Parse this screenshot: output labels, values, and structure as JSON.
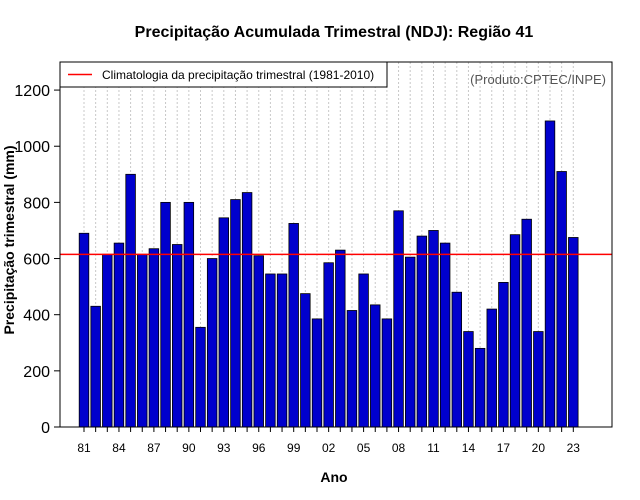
{
  "chart_data": {
    "type": "bar",
    "title": "Precipitação Acumulada Trimestral (NDJ): Região 41",
    "xlabel": "Ano",
    "ylabel": "Precipitação trimestral (mm)",
    "product_note": "(Produto:CPTEC/INPE)",
    "ylim": [
      0,
      1300
    ],
    "yticks": [
      0,
      200,
      400,
      600,
      800,
      1000,
      1200
    ],
    "grid": "vertical-dotted",
    "legend_position": "top-left",
    "legend": [
      {
        "label": "Climatologia da precipitação trimestral (1981-2010)",
        "color": "#ff0000"
      }
    ],
    "climatology": 615,
    "xtick_labels": [
      "81",
      "84",
      "87",
      "90",
      "93",
      "96",
      "99",
      "02",
      "05",
      "08",
      "11",
      "14",
      "17",
      "20",
      "23"
    ],
    "categories": [
      "1981",
      "1982",
      "1983",
      "1984",
      "1985",
      "1986",
      "1987",
      "1988",
      "1989",
      "1990",
      "1991",
      "1992",
      "1993",
      "1994",
      "1995",
      "1996",
      "1997",
      "1998",
      "1999",
      "2000",
      "2001",
      "2002",
      "2003",
      "2004",
      "2005",
      "2006",
      "2007",
      "2008",
      "2009",
      "2010",
      "2011",
      "2012",
      "2013",
      "2014",
      "2015",
      "2016",
      "2017",
      "2018",
      "2019",
      "2020",
      "2021",
      "2022",
      "2023"
    ],
    "values": [
      690,
      430,
      615,
      655,
      900,
      615,
      635,
      800,
      650,
      800,
      355,
      600,
      745,
      810,
      835,
      610,
      545,
      545,
      725,
      475,
      385,
      585,
      630,
      415,
      545,
      435,
      385,
      770,
      605,
      680,
      700,
      655,
      480,
      340,
      280,
      420,
      515,
      685,
      740,
      340,
      1090,
      910,
      675
    ],
    "colors": {
      "bar": "#0000cd",
      "bar_border": "#000000",
      "climatology": "#ff0000",
      "grid": "#c8c8c8"
    }
  }
}
